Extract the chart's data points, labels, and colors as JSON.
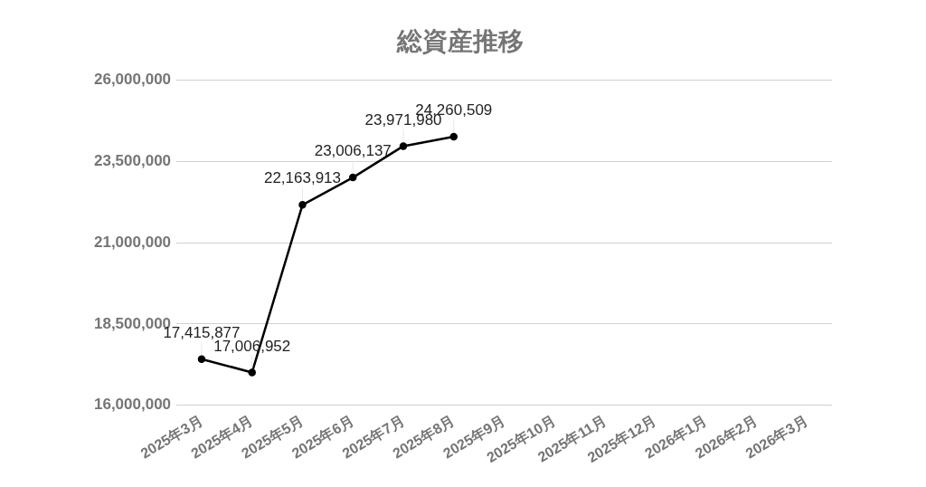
{
  "chart_data": {
    "type": "line",
    "title": "総資産推移",
    "categories": [
      "2025年3月",
      "2025年4月",
      "2025年5月",
      "2025年6月",
      "2025年7月",
      "2025年8月",
      "2025年9月",
      "2025年10月",
      "2025年11月",
      "2025年12月",
      "2026年1月",
      "2026年2月",
      "2026年3月"
    ],
    "values": [
      17415877,
      17006952,
      22163913,
      23006137,
      23971980,
      24260509,
      null,
      null,
      null,
      null,
      null,
      null,
      null
    ],
    "value_labels": [
      "17,415,877",
      "17,006,952",
      "22,163,913",
      "23,006,137",
      "23,971,980",
      "24,260,509",
      null,
      null,
      null,
      null,
      null,
      null,
      null
    ],
    "color": "#000000",
    "ylim": [
      16000000,
      26000000
    ],
    "yticks": [
      {
        "value": 16000000,
        "label": "16,000,000"
      },
      {
        "value": 18500000,
        "label": "18,500,000"
      },
      {
        "value": 21000000,
        "label": "21,000,000"
      },
      {
        "value": 23500000,
        "label": "23,500,000"
      },
      {
        "value": 26000000,
        "label": "26,000,000"
      }
    ],
    "grid": "y",
    "marker": "circle",
    "line_style": "solid"
  }
}
